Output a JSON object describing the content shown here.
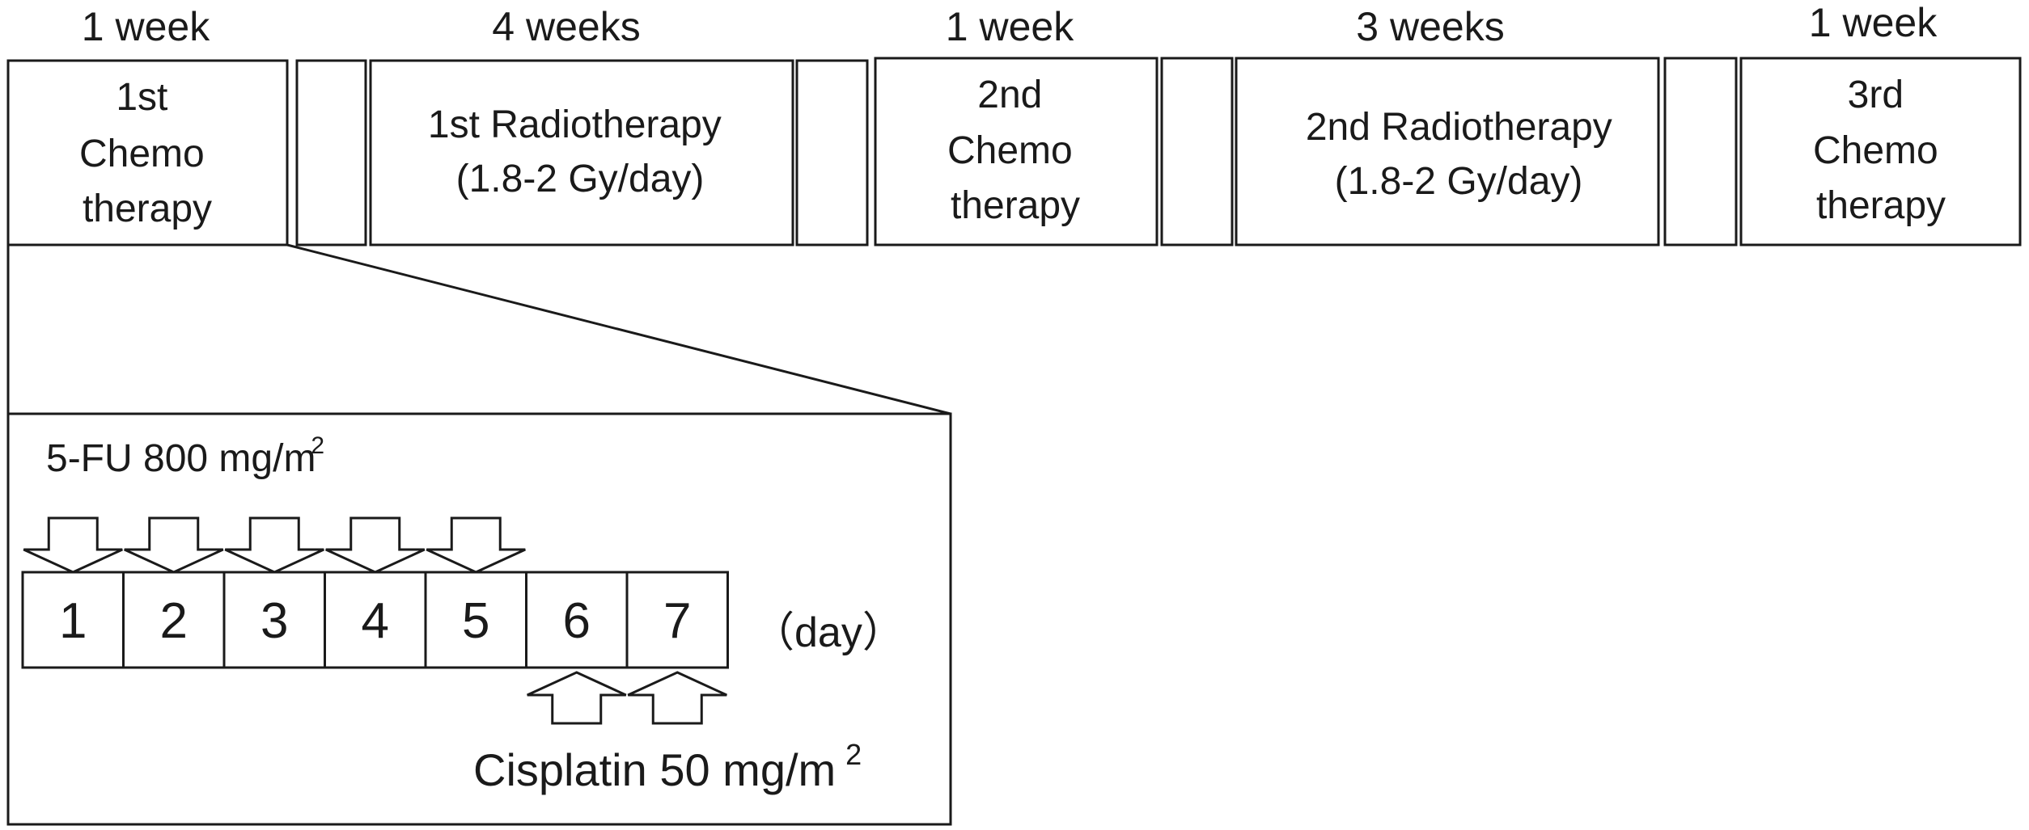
{
  "timeline": {
    "durations": [
      "1 week",
      "4 weeks",
      "1 week",
      "3 weeks",
      "1 week"
    ],
    "phases": [
      {
        "id": "chemo-1",
        "lines": [
          "1st",
          "Chemo",
          "therapy"
        ]
      },
      {
        "id": "radio-1",
        "lines": [
          "1st Radiotherapy",
          "(1.8-2 Gy/day)"
        ]
      },
      {
        "id": "chemo-2",
        "lines": [
          "2nd",
          "Chemo",
          "therapy"
        ]
      },
      {
        "id": "radio-2",
        "lines": [
          "2nd Radiotherapy",
          "(1.8-2 Gy/day)"
        ]
      },
      {
        "id": "chemo-3",
        "lines": [
          "3rd",
          "Chemo",
          "therapy"
        ]
      }
    ]
  },
  "detail": {
    "fu_label": "5-FU 800 mg/m",
    "fu_superscript": "2",
    "days": [
      "1",
      "2",
      "3",
      "4",
      "5",
      "6",
      "7"
    ],
    "day_unit": "（day）",
    "cisplatin_label": "Cisplatin 50 mg/m",
    "cisplatin_superscript": "2"
  }
}
